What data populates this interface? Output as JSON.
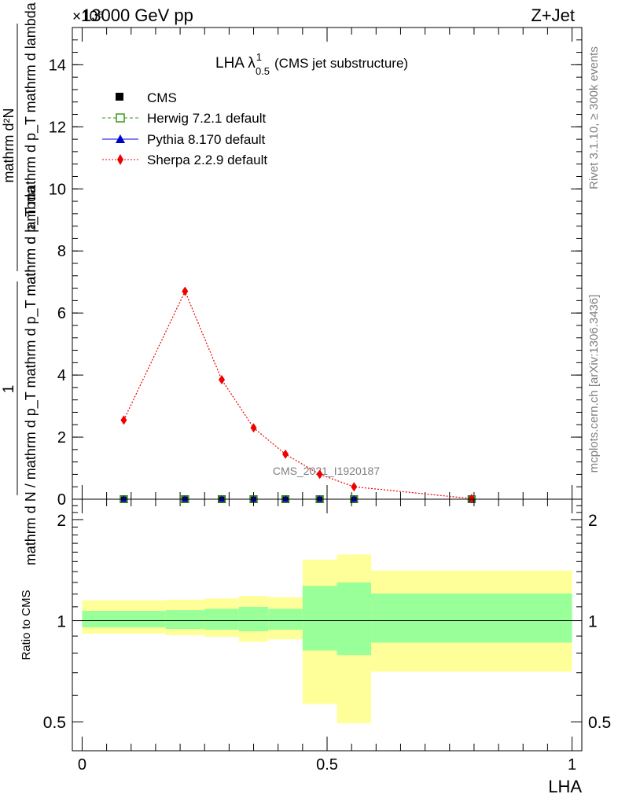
{
  "header": {
    "energy": "13000 GeV pp",
    "process": "Z+Jet",
    "exponent_label": "×10⁶"
  },
  "side": {
    "rivet": "Rivet 3.1.10, ≥ 300k events",
    "mcplots": "mcplots.cern.ch [arXiv:1306.3436]"
  },
  "watermark": "CMS_2021_I1920187",
  "colors": {
    "cms": "#000000",
    "herwig": "#3a9a1a",
    "pythia": "#0000cc",
    "sherpa": "#ee0000",
    "band_outer": "#ffff99",
    "band_inner": "#99ff99"
  },
  "chart_data": [
    {
      "type": "line",
      "title": "LHA λ",
      "title_super": "1",
      "title_sub": "0.5",
      "title_suffix": "(CMS jet substructure)",
      "ylabel": {
        "prefactor": "1",
        "prefactor_denominator": "mathrm d N / mathrm d p_T mathrm d p_T mathrm d lambda",
        "numerator": "mathrm d²N",
        "denominator": "mathrm d p_T mathrm d p_T mathrm d lambda"
      },
      "ylim": [
        0,
        15.2
      ],
      "xlim": [
        -0.02,
        1.02
      ],
      "y_ticks": [
        0,
        2,
        4,
        6,
        8,
        10,
        12,
        14
      ],
      "y_tick_labels": [
        "0",
        "2",
        "4",
        "6",
        "8",
        "10",
        "12",
        "14"
      ],
      "legend": [
        {
          "label": "CMS",
          "marker": "filled-square"
        },
        {
          "label": "Herwig 7.2.1 default",
          "marker": "open-square"
        },
        {
          "label": "Pythia 8.170 default",
          "marker": "filled-triangle"
        },
        {
          "label": "Sherpa 2.2.9 default",
          "marker": "filled-diamond"
        }
      ],
      "series": [
        {
          "name": "CMS",
          "x": [
            0.085,
            0.21,
            0.285,
            0.35,
            0.415,
            0.485,
            0.555,
            0.795
          ],
          "y": [
            0,
            0,
            0,
            0,
            0,
            0,
            0,
            0
          ]
        },
        {
          "name": "Herwig 7.2.1 default",
          "x": [
            0.085,
            0.21,
            0.285,
            0.35,
            0.415,
            0.485,
            0.555,
            0.795
          ],
          "y": [
            0,
            0,
            0,
            0,
            0,
            0,
            0,
            0
          ]
        },
        {
          "name": "Pythia 8.170 default",
          "x": [
            0.085,
            0.21,
            0.285,
            0.35,
            0.415,
            0.485,
            0.555,
            0.795
          ],
          "y": [
            0,
            0,
            0,
            0,
            0,
            0,
            0,
            0
          ]
        },
        {
          "name": "Sherpa 2.2.9 default",
          "x": [
            0.085,
            0.21,
            0.285,
            0.35,
            0.415,
            0.485,
            0.555,
            0.795
          ],
          "y": [
            2.55,
            6.7,
            3.85,
            2.3,
            1.45,
            0.8,
            0.4,
            0.02
          ]
        }
      ]
    },
    {
      "type": "area",
      "ylabel": "Ratio to CMS",
      "xlabel": "LHA",
      "xlim": [
        -0.02,
        1.02
      ],
      "ylim": [
        0.41,
        2.3
      ],
      "y_scale": "log",
      "y_ticks": [
        0.5,
        1,
        2
      ],
      "y_tick_labels": [
        "0.5",
        "1",
        "2"
      ],
      "x_ticks": [
        0,
        0.5,
        1
      ],
      "x_tick_labels": [
        "0",
        "0.5",
        "1"
      ],
      "bins": [
        {
          "lo": 0.0,
          "hi": 0.17,
          "outer": [
            0.915,
            1.15
          ],
          "inner": [
            0.955,
            1.07
          ]
        },
        {
          "lo": 0.17,
          "hi": 0.25,
          "outer": [
            0.905,
            1.155
          ],
          "inner": [
            0.945,
            1.075
          ]
        },
        {
          "lo": 0.25,
          "hi": 0.32,
          "outer": [
            0.895,
            1.165
          ],
          "inner": [
            0.94,
            1.085
          ]
        },
        {
          "lo": 0.32,
          "hi": 0.38,
          "outer": [
            0.865,
            1.185
          ],
          "inner": [
            0.93,
            1.1
          ]
        },
        {
          "lo": 0.38,
          "hi": 0.45,
          "outer": [
            0.88,
            1.175
          ],
          "inner": [
            0.94,
            1.085
          ]
        },
        {
          "lo": 0.45,
          "hi": 0.52,
          "outer": [
            0.565,
            1.52
          ],
          "inner": [
            0.815,
            1.27
          ]
        },
        {
          "lo": 0.52,
          "hi": 0.59,
          "outer": [
            0.495,
            1.575
          ],
          "inner": [
            0.79,
            1.3
          ]
        },
        {
          "lo": 0.59,
          "hi": 1.0,
          "outer": [
            0.705,
            1.41
          ],
          "inner": [
            0.86,
            1.205
          ]
        }
      ],
      "reference_line": 1
    }
  ]
}
